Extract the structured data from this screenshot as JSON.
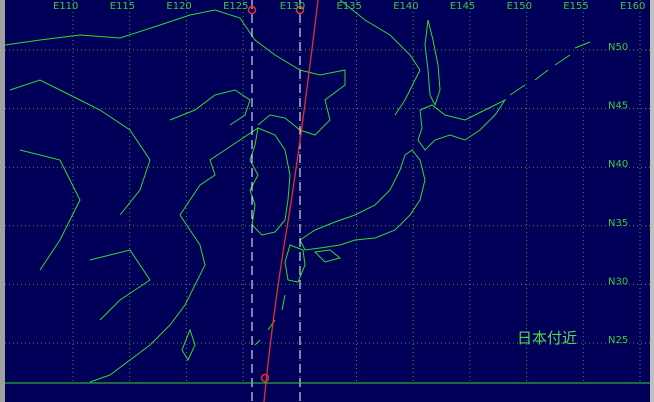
{
  "map": {
    "longitude_labels": [
      "E110",
      "E115",
      "E120",
      "E125",
      "E130",
      "E135",
      "E140",
      "E145",
      "E150",
      "E155",
      "E160"
    ],
    "latitude_labels": [
      "N50",
      "N45",
      "N40",
      "N35",
      "N30",
      "N25"
    ],
    "region_label": "日本付近"
  }
}
